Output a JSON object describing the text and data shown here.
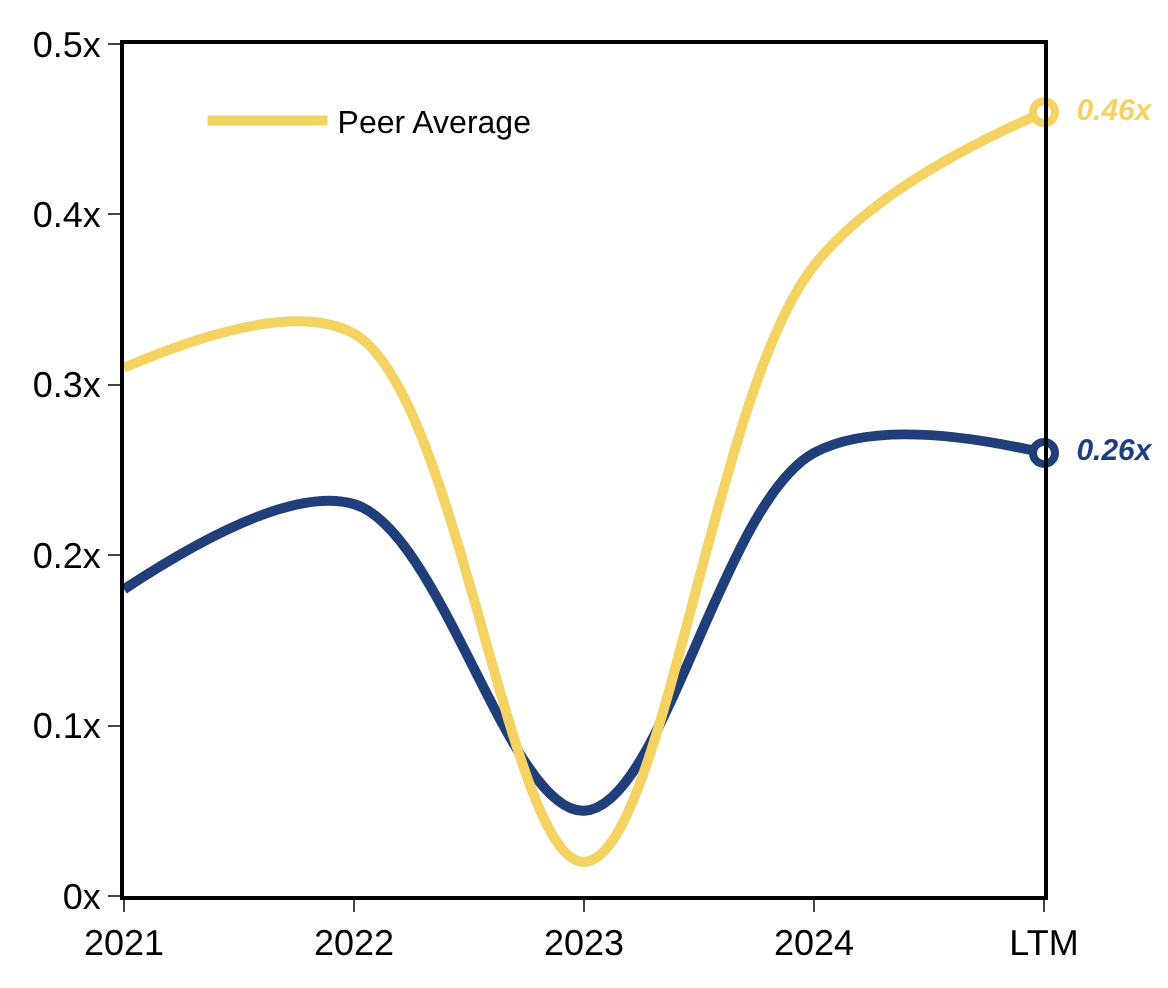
{
  "chart_data": {
    "type": "line",
    "categories": [
      "2021",
      "2022",
      "2023",
      "2024",
      "LTM"
    ],
    "series": [
      {
        "color": "#203f7a",
        "values": [
          0.18,
          0.23,
          0.05,
          0.26,
          0.26
        ],
        "value_labels": [
          null,
          null,
          null,
          null,
          "0.26x"
        ]
      },
      {
        "name": "Peer Average",
        "color": "#f5d362",
        "values": [
          0.31,
          0.33,
          0.02,
          0.37,
          0.46
        ],
        "value_labels": [
          null,
          null,
          null,
          null,
          "0.46x"
        ]
      }
    ],
    "ylim": [
      0,
      0.5
    ],
    "yticks": [
      {
        "value": 0,
        "label": "0x"
      },
      {
        "value": 0.1,
        "label": "0.1x"
      },
      {
        "value": 0.2,
        "label": "0.2x"
      },
      {
        "value": 0.3,
        "label": "0.3x"
      },
      {
        "value": 0.4,
        "label": "0.4x"
      },
      {
        "value": 0.5,
        "label": "0.5x"
      }
    ],
    "legend": "top left",
    "marker": "none",
    "line_style": "solid"
  }
}
